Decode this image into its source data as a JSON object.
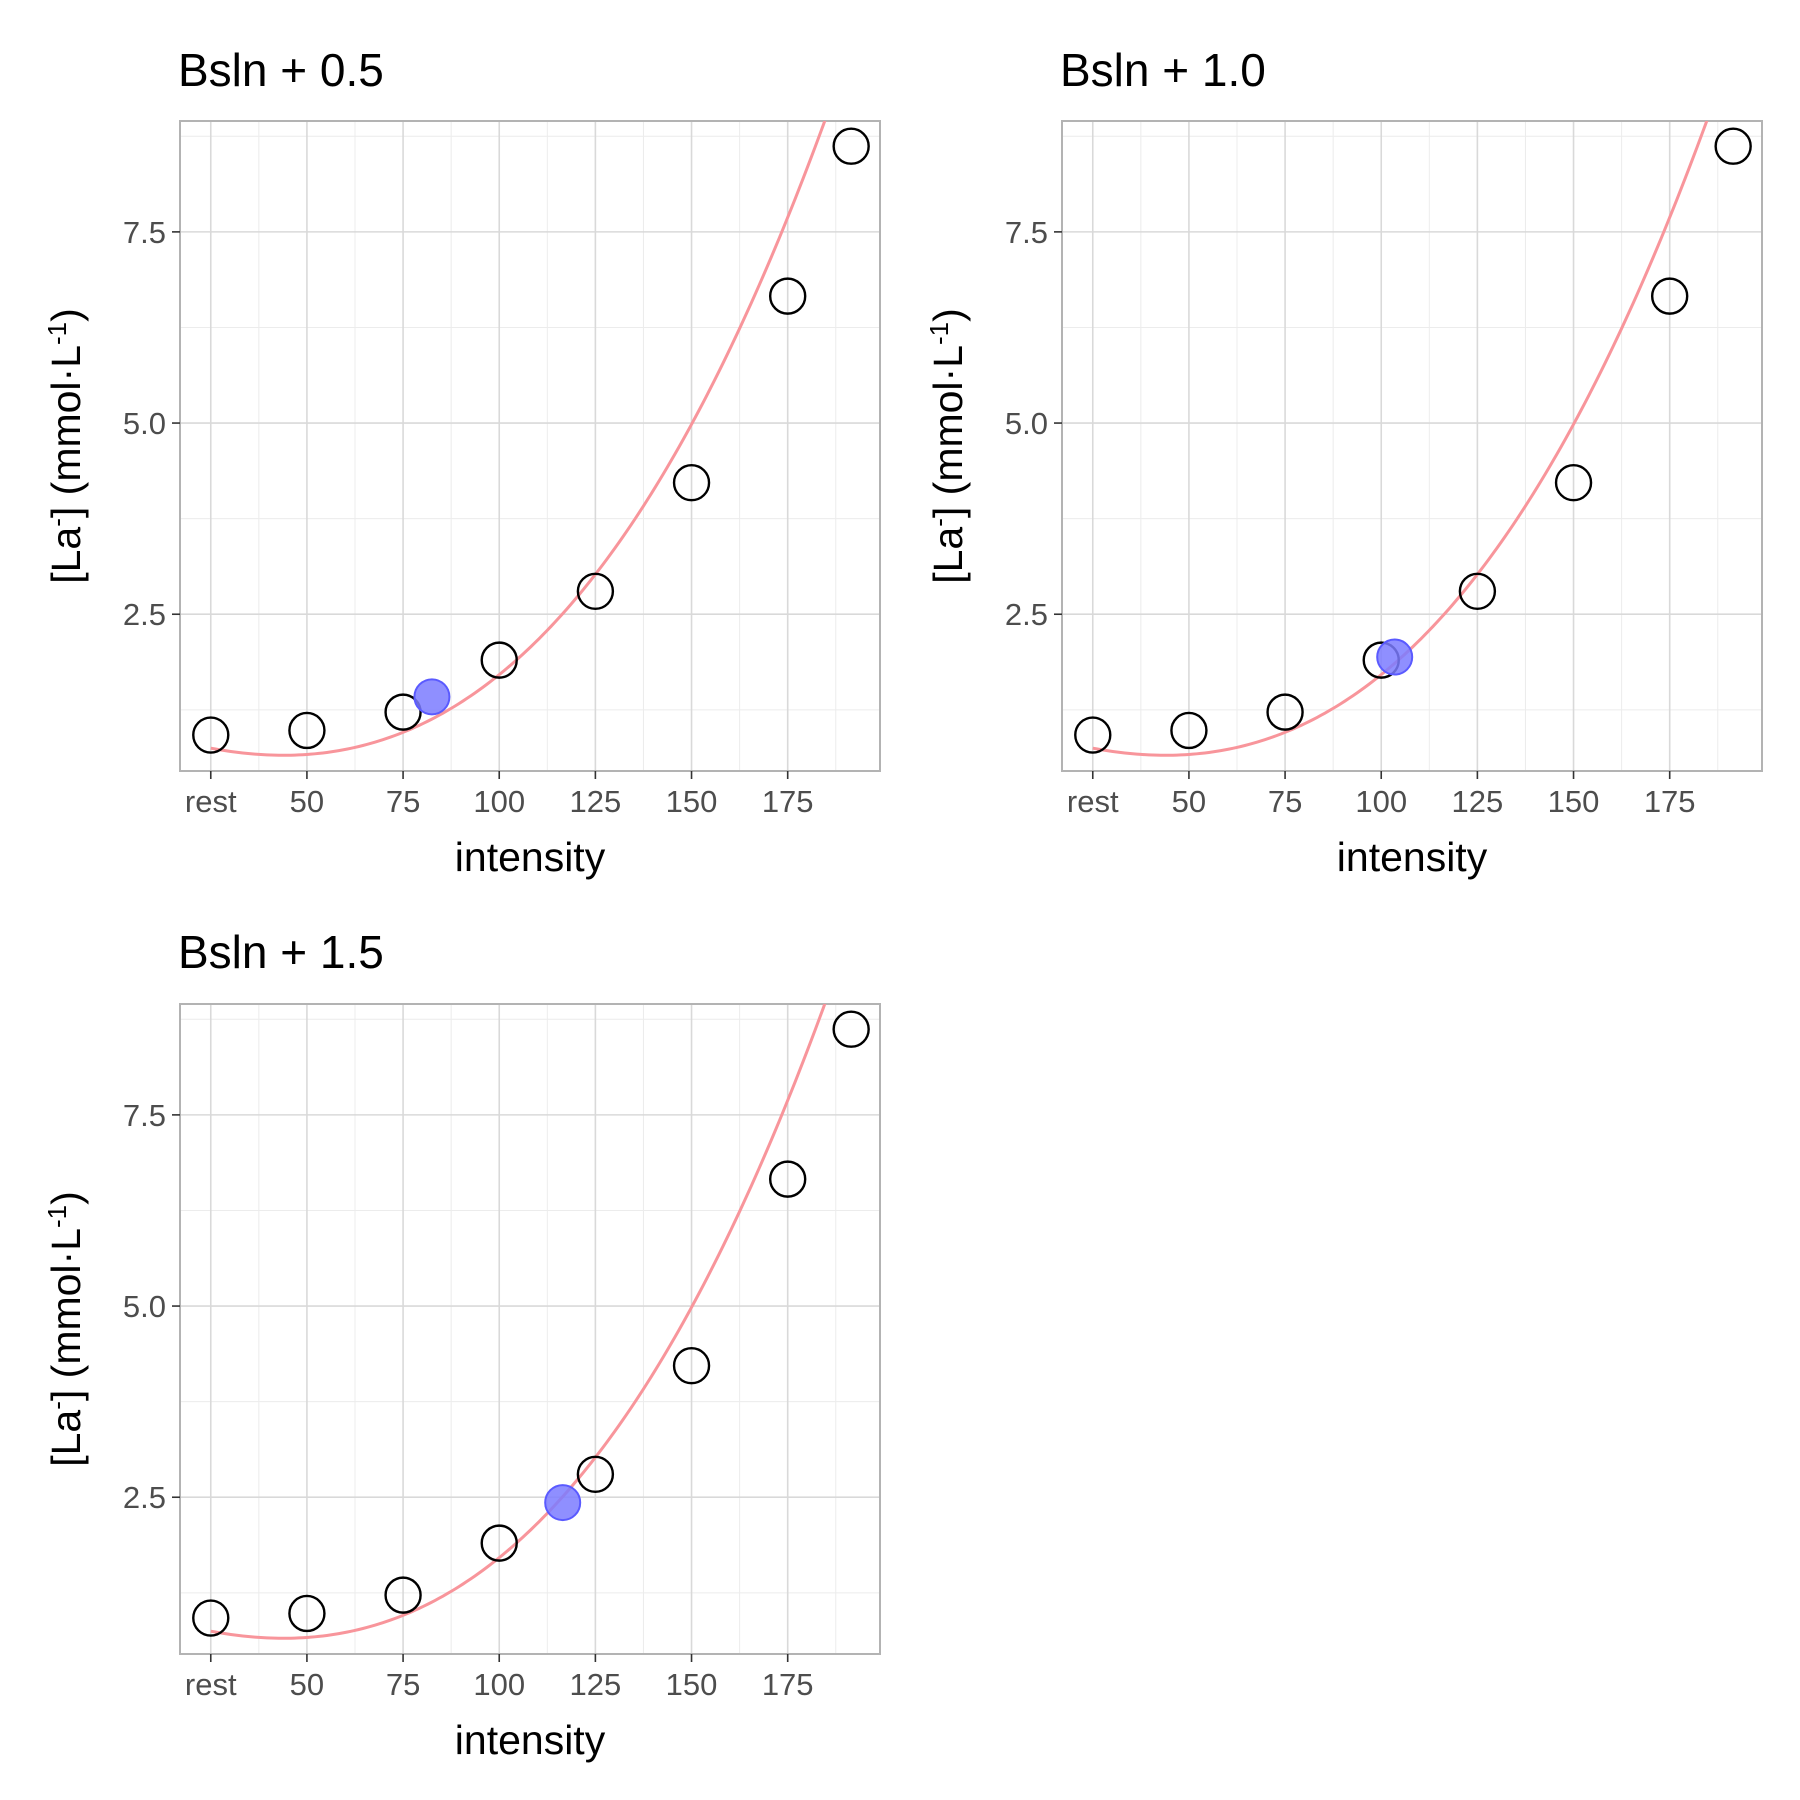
{
  "colors": {
    "panel_border": "#b3b3b3",
    "grid_major": "#d9d9d9",
    "grid_minor": "#ececec",
    "curve": "#f8959b",
    "point_stroke": "#000000",
    "point_fill": "#ffffff",
    "highlight_fill": "#7b7bff",
    "highlight_stroke": "#5a5aff"
  },
  "shared": {
    "xlabel": "intensity",
    "ylabel_parts": [
      "[La",
      "-",
      "] (mmol·L",
      "-1",
      ")"
    ],
    "x_ticks": [
      {
        "value": 25,
        "label": "rest"
      },
      {
        "value": 50,
        "label": "50"
      },
      {
        "value": 75,
        "label": "75"
      },
      {
        "value": 100,
        "label": "100"
      },
      {
        "value": 125,
        "label": "125"
      },
      {
        "value": 150,
        "label": "150"
      },
      {
        "value": 175,
        "label": "175"
      }
    ],
    "y_ticks": [
      2.5,
      5.0,
      7.5
    ],
    "x_minor_ticks": [
      37.5,
      62.5,
      87.5,
      112.5,
      137.5,
      162.5,
      187.5
    ],
    "y_minor_ticks": [
      1.25,
      3.75,
      6.25,
      8.75
    ]
  },
  "chart_data": [
    {
      "type": "scatter",
      "title": "Bsln + 0.5",
      "xlabel": "intensity",
      "ylabel": "[La-] (mmol·L-1)",
      "xlim": [
        17,
        199
      ],
      "ylim": [
        0.45,
        8.95
      ],
      "grid": true,
      "series": [
        {
          "x": [
            25,
            50,
            75,
            100,
            125,
            150,
            175,
            191.5
          ],
          "y": [
            0.92,
            0.98,
            1.22,
            1.9,
            2.8,
            4.22,
            6.66,
            8.62
          ]
        }
      ],
      "curve": {
        "type": "polynomial",
        "coefficients": [
          1.11,
          -0.0188,
          0.000149,
          9.9e-07
        ]
      },
      "highlight": {
        "x": 82.5,
        "y": 1.42
      }
    },
    {
      "type": "scatter",
      "title": "Bsln + 1.0",
      "xlabel": "intensity",
      "ylabel": "[La-] (mmol·L-1)",
      "xlim": [
        17,
        199
      ],
      "ylim": [
        0.45,
        8.95
      ],
      "grid": true,
      "series": [
        {
          "x": [
            25,
            50,
            75,
            100,
            125,
            150,
            175,
            191.5
          ],
          "y": [
            0.92,
            0.98,
            1.22,
            1.9,
            2.8,
            4.22,
            6.66,
            8.62
          ]
        }
      ],
      "curve": {
        "type": "polynomial",
        "coefficients": [
          1.11,
          -0.0188,
          0.000149,
          9.9e-07
        ]
      },
      "highlight": {
        "x": 103.5,
        "y": 1.94
      }
    },
    {
      "type": "scatter",
      "title": "Bsln + 1.5",
      "xlabel": "intensity",
      "ylabel": "[La-] (mmol·L-1)",
      "xlim": [
        17,
        199
      ],
      "ylim": [
        0.45,
        8.95
      ],
      "grid": true,
      "series": [
        {
          "x": [
            25,
            50,
            75,
            100,
            125,
            150,
            175,
            191.5
          ],
          "y": [
            0.92,
            0.98,
            1.22,
            1.9,
            2.8,
            4.22,
            6.66,
            8.62
          ]
        }
      ],
      "curve": {
        "type": "polynomial",
        "coefficients": [
          1.11,
          -0.0188,
          0.000149,
          9.9e-07
        ]
      },
      "highlight": {
        "x": 116.5,
        "y": 2.43
      }
    }
  ]
}
